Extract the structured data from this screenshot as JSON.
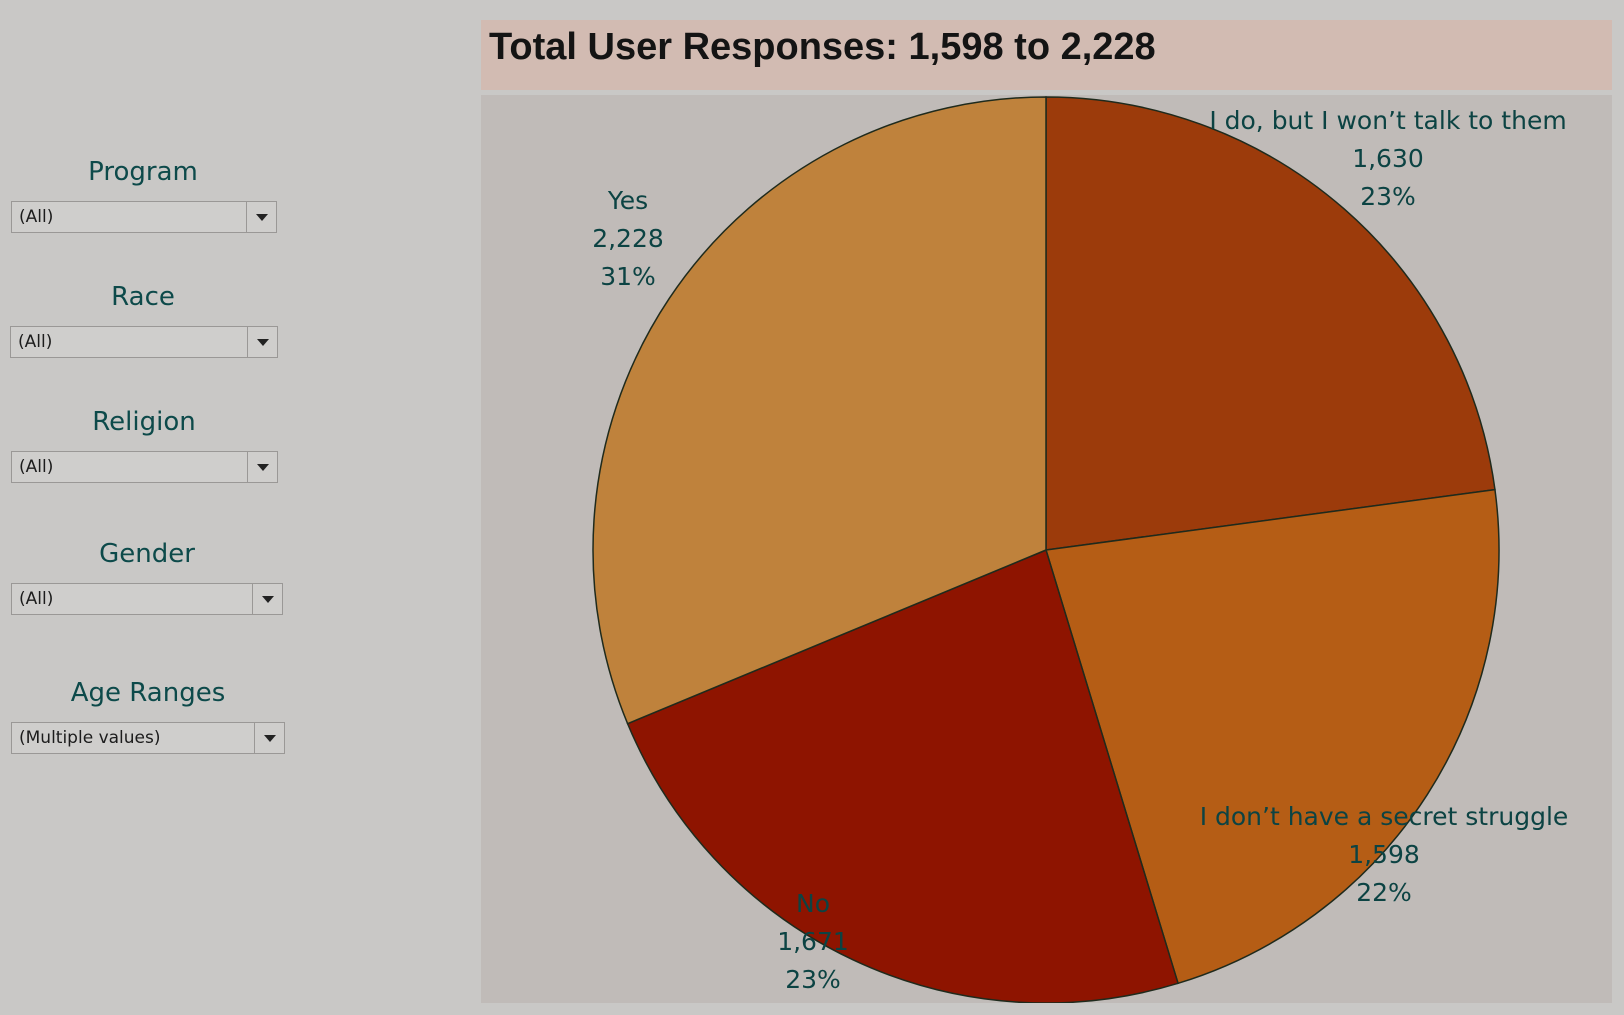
{
  "filters": [
    {
      "label": "Program",
      "value": "(All)"
    },
    {
      "label": "Race",
      "value": "(All)"
    },
    {
      "label": "Religion",
      "value": "(All)"
    },
    {
      "label": "Gender",
      "value": "(All)"
    },
    {
      "label": "Age Ranges",
      "value": "(Multiple values)"
    }
  ],
  "chart_data": {
    "type": "pie",
    "title": "Total User Responses: 1,598 to 2,228",
    "slices": [
      {
        "label": "I do, but I won’t talk to them",
        "value": 1630,
        "value_text": "1,630",
        "percent_text": "23%",
        "color": "#9c3b0b"
      },
      {
        "label": "I don’t have a secret struggle",
        "value": 1598,
        "value_text": "1,598",
        "percent_text": "22%",
        "color": "#b55d15"
      },
      {
        "label": "No",
        "value": 1671,
        "value_text": "1,671",
        "percent_text": "23%",
        "color": "#8e1400"
      },
      {
        "label": "Yes",
        "value": 2228,
        "value_text": "2,228",
        "percent_text": "31%",
        "color": "#bf823c"
      }
    ]
  }
}
